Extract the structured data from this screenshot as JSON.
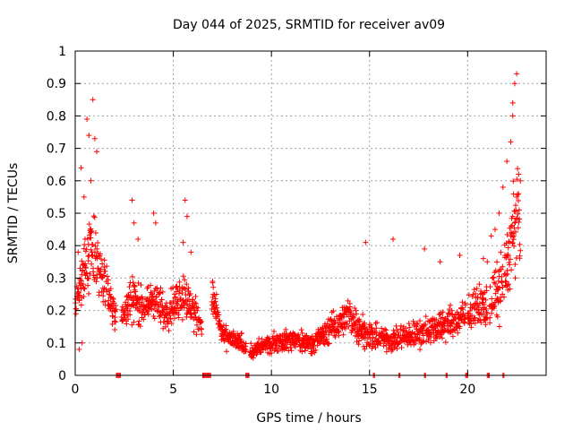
{
  "chart_data": {
    "type": "scatter",
    "title": "Day 044 of 2025, SRMTID for receiver av09",
    "xlabel": "GPS time / hours",
    "ylabel": "SRMTID / TECUs",
    "xlim": [
      0,
      24
    ],
    "ylim": [
      0,
      1
    ],
    "x_ticks": [
      "0",
      "5",
      "10",
      "15",
      "20"
    ],
    "y_ticks": [
      "0",
      "0.1",
      "0.2",
      "0.3",
      "0.4",
      "0.5",
      "0.6",
      "0.7",
      "0.8",
      "0.9",
      "1"
    ],
    "grid": true,
    "marker": "+",
    "series_color": "#ff0000",
    "envelope": {
      "description": "approximate typical level (x in hours, y in TECUs)",
      "x": [
        0.0,
        0.3,
        0.6,
        0.9,
        1.2,
        1.6,
        2.0,
        2.5,
        3.0,
        3.5,
        4.0,
        4.5,
        5.0,
        5.5,
        6.0,
        6.5,
        7.0,
        7.5,
        8.0,
        8.5,
        9.0,
        9.5,
        10.0,
        11.0,
        12.0,
        13.0,
        13.5,
        14.0,
        15.0,
        16.0,
        17.0,
        18.0,
        19.0,
        20.0,
        20.5,
        21.0,
        21.5,
        22.0,
        22.3,
        22.6
      ],
      "y": [
        0.22,
        0.28,
        0.35,
        0.4,
        0.33,
        0.26,
        0.2,
        0.19,
        0.25,
        0.2,
        0.24,
        0.19,
        0.22,
        0.25,
        0.2,
        0.15,
        0.24,
        0.12,
        0.11,
        0.1,
        0.07,
        0.09,
        0.1,
        0.11,
        0.1,
        0.14,
        0.17,
        0.18,
        0.12,
        0.11,
        0.12,
        0.14,
        0.16,
        0.18,
        0.22,
        0.21,
        0.26,
        0.33,
        0.45,
        0.48
      ],
      "spread": [
        0.08,
        0.1,
        0.15,
        0.18,
        0.14,
        0.1,
        0.07,
        0.06,
        0.12,
        0.07,
        0.1,
        0.08,
        0.09,
        0.11,
        0.08,
        0.06,
        0.07,
        0.05,
        0.04,
        0.04,
        0.03,
        0.04,
        0.04,
        0.05,
        0.04,
        0.06,
        0.07,
        0.08,
        0.06,
        0.05,
        0.06,
        0.06,
        0.07,
        0.07,
        0.08,
        0.09,
        0.12,
        0.18,
        0.22,
        0.2
      ]
    },
    "points": [
      [
        0.15,
        0.38
      ],
      [
        0.3,
        0.64
      ],
      [
        0.45,
        0.55
      ],
      [
        0.6,
        0.79
      ],
      [
        0.7,
        0.74
      ],
      [
        0.9,
        0.85
      ],
      [
        1.0,
        0.73
      ],
      [
        1.1,
        0.69
      ],
      [
        0.5,
        0.42
      ],
      [
        0.8,
        0.6
      ],
      [
        0.2,
        0.08
      ],
      [
        0.35,
        0.1
      ],
      [
        2.9,
        0.54
      ],
      [
        3.0,
        0.47
      ],
      [
        3.2,
        0.42
      ],
      [
        4.0,
        0.5
      ],
      [
        4.1,
        0.47
      ],
      [
        5.6,
        0.54
      ],
      [
        5.7,
        0.49
      ],
      [
        5.5,
        0.41
      ],
      [
        5.9,
        0.38
      ],
      [
        7.0,
        0.29
      ],
      [
        7.2,
        0.25
      ],
      [
        14.8,
        0.41
      ],
      [
        16.2,
        0.42
      ],
      [
        17.8,
        0.39
      ],
      [
        18.6,
        0.35
      ],
      [
        19.6,
        0.37
      ],
      [
        21.6,
        0.5
      ],
      [
        21.8,
        0.58
      ],
      [
        22.0,
        0.66
      ],
      [
        22.2,
        0.72
      ],
      [
        22.3,
        0.84
      ],
      [
        22.4,
        0.9
      ],
      [
        22.5,
        0.93
      ],
      [
        22.3,
        0.8
      ],
      [
        22.6,
        0.62
      ],
      [
        22.5,
        0.55
      ],
      [
        21.4,
        0.45
      ],
      [
        21.2,
        0.43
      ],
      [
        20.8,
        0.36
      ],
      [
        21.0,
        0.35
      ]
    ],
    "zero_segments": [
      [
        2.1,
        2.3
      ],
      [
        6.5,
        6.9
      ],
      [
        8.7,
        8.9
      ],
      [
        15.2,
        15.25
      ],
      [
        16.5,
        16.55
      ],
      [
        17.8,
        17.85
      ],
      [
        18.9,
        18.95
      ],
      [
        19.9,
        20.0
      ],
      [
        21.0,
        21.1
      ],
      [
        21.8,
        21.85
      ]
    ]
  }
}
